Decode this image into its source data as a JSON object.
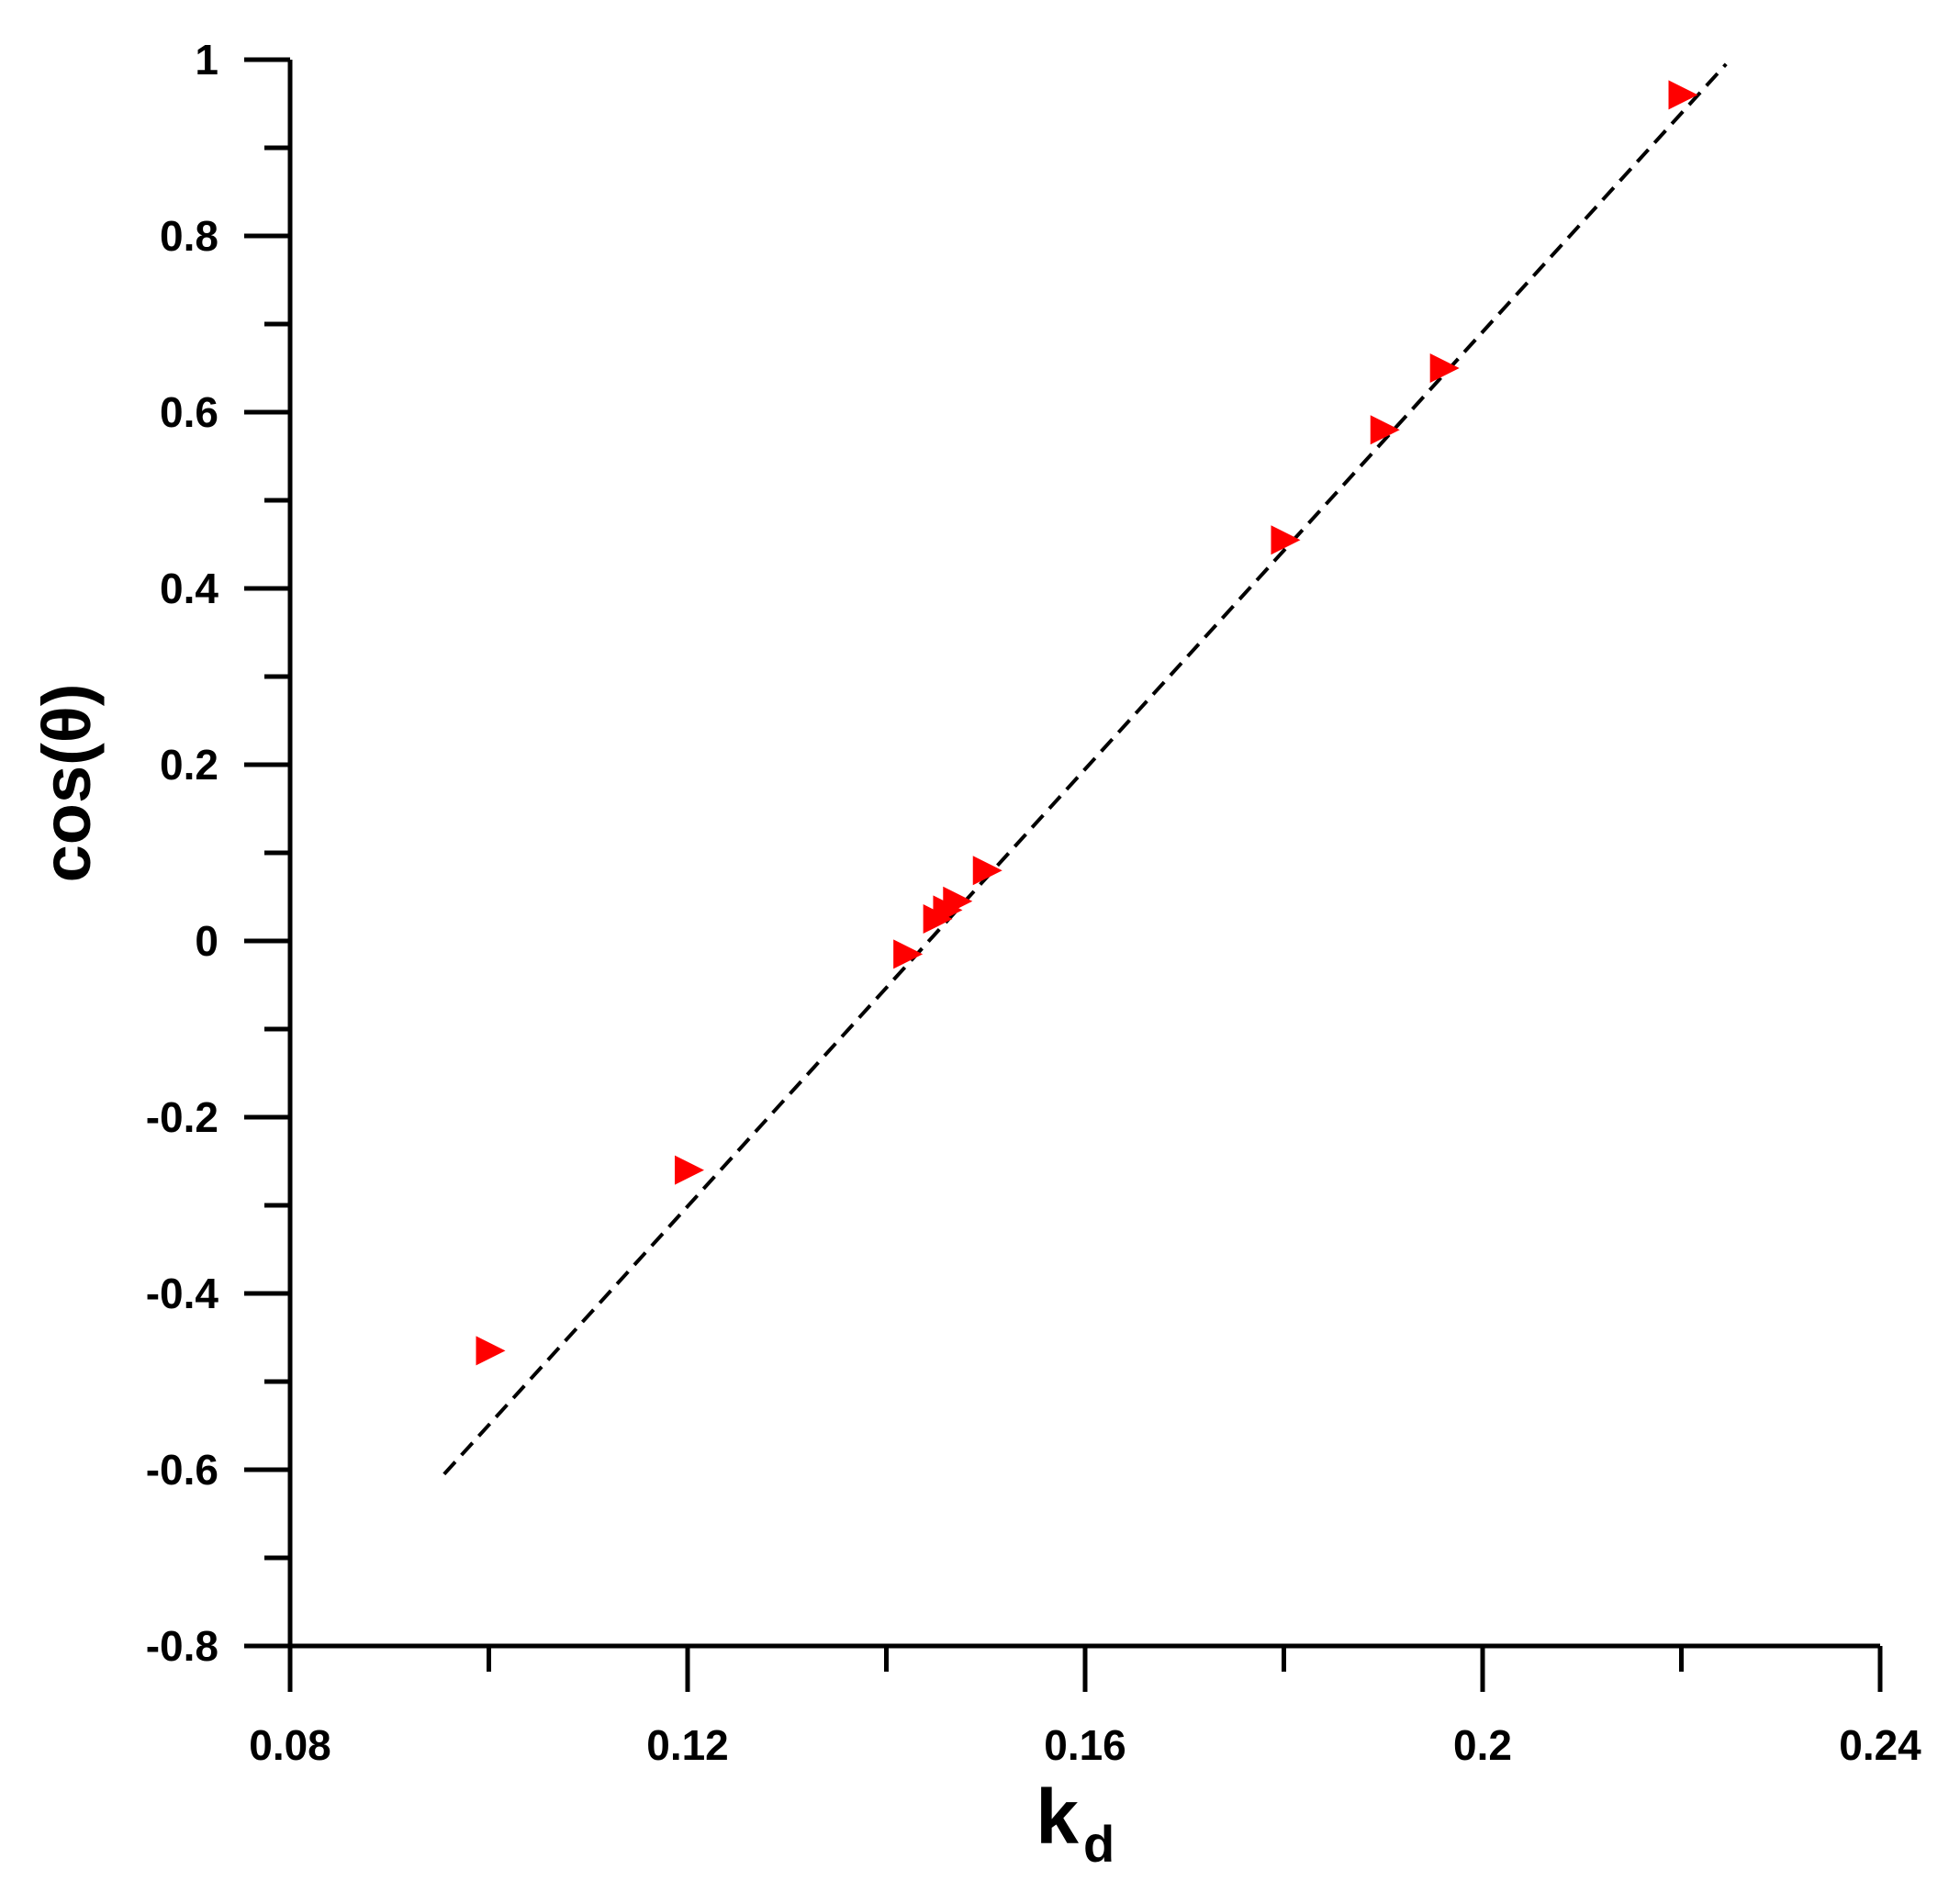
{
  "chart_data": {
    "type": "scatter",
    "title": "",
    "xlabel": "k",
    "xlabel_sub": "d",
    "ylabel": "cos(θ)",
    "xlim": [
      0.08,
      0.24
    ],
    "ylim": [
      -0.8,
      1.0
    ],
    "x_ticks": [
      0.08,
      0.1,
      0.12,
      0.14,
      0.16,
      0.18,
      0.2,
      0.22,
      0.24
    ],
    "x_tick_labels": [
      "0.08",
      "",
      "0.12",
      "",
      "0.16",
      "",
      "0.2",
      "",
      "0.24"
    ],
    "y_ticks": [
      -0.8,
      -0.7,
      -0.6,
      -0.5,
      -0.4,
      -0.3,
      -0.2,
      -0.1,
      0,
      0.1,
      0.2,
      0.3,
      0.4,
      0.5,
      0.6,
      0.7,
      0.8,
      0.9,
      1.0
    ],
    "y_tick_labels": [
      "-0.8",
      "",
      "-0.6",
      "",
      "-0.4",
      "",
      "-0.2",
      "",
      "0",
      "",
      "0.2",
      "",
      "0.4",
      "",
      "0.6",
      "",
      "0.8",
      "",
      "1"
    ],
    "grid": false,
    "series": [
      {
        "kind": "scatter",
        "marker": "triangle-right",
        "color": "#ff0000",
        "x": [
          0.1,
          0.12,
          0.142,
          0.145,
          0.146,
          0.147,
          0.15,
          0.18,
          0.19,
          0.196,
          0.22
        ],
        "y": [
          -0.465,
          -0.26,
          -0.015,
          0.025,
          0.035,
          0.045,
          0.08,
          0.455,
          0.58,
          0.65,
          0.96
        ]
      },
      {
        "kind": "fit-line",
        "style": "dashed",
        "color": "#000000",
        "x": [
          0.0955,
          0.2245
        ],
        "y": [
          -0.605,
          0.995
        ]
      }
    ]
  }
}
